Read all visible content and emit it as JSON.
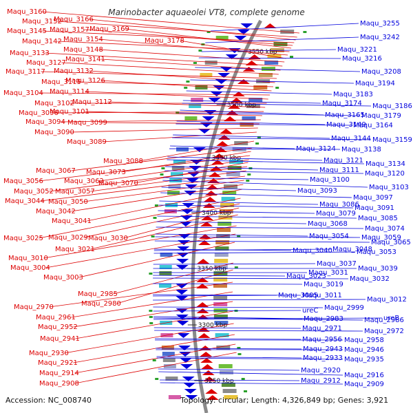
{
  "title": "Marinobacter aquaeolei VT8, complete genome",
  "footer": {
    "accession": "Accession: NC_008740",
    "stats": "Topology: circular; Length: 4,326,849 bp; Genes: 3,921"
  },
  "colors": {
    "forward": "#dd0000",
    "reverse": "#0000dd",
    "backbone": "#999999"
  },
  "ticks": [
    "3550 kbp",
    "3500 kbp",
    "3450 kbp",
    "3400 kbp",
    "3350 kbp",
    "3300 kbp",
    "3250 kbp"
  ],
  "left_labels": [
    "Maqu_3160",
    "Maqu_3152",
    "Maqu_3166",
    "Maqu_3145",
    "Maqu_3157",
    "Maqu_3169",
    "Maqu_3142",
    "Maqu_3154",
    "Maqu_3178",
    "Maqu_3148",
    "Maqu_3133",
    "Maqu_3141",
    "Maqu_3127",
    "Maqu_3117",
    "Maqu_3132",
    "Maqu_3115",
    "Maqu_3126",
    "Maqu_3104",
    "Maqu_3114",
    "Maqu_3102",
    "Maqu_3112",
    "Maqu_3096",
    "Maqu_3101",
    "Maqu_3094",
    "Maqu_3099",
    "Maqu_3090",
    "Maqu_3089",
    "Maqu_3088",
    "Maqu_3067",
    "Maqu_3073",
    "Maqu_3056",
    "Maqu_3062",
    "Maqu_3070",
    "Maqu_3052",
    "Maqu_3057",
    "Maqu_3044",
    "Maqu_3050",
    "Maqu_3042",
    "Maqu_3041",
    "Maqu_3025",
    "Maqu_3029",
    "Maqu_3030",
    "Maqu_3021",
    "Maqu_3010",
    "Maqu_3004",
    "Maqu_3003",
    "Maqu_2985",
    "Maqu_2980",
    "Maqu_2970",
    "Maqu_2961",
    "Maqu_2952",
    "Maqu_2941",
    "Maqu_2930",
    "Maqu_2921",
    "Maqu_2914",
    "Maqu_2908"
  ],
  "right_labels": [
    "Maqu_3255",
    "Maqu_3242",
    "Maqu_3221",
    "Maqu_3216",
    "Maqu_3208",
    "Maqu_3194",
    "Maqu_3183",
    "Maqu_3174",
    "Maqu_3186",
    "Maqu_3165",
    "Maqu_3179",
    "Maqu_3149",
    "Maqu_3164",
    "Maqu_3144",
    "Maqu_3159",
    "Maqu_3124",
    "Maqu_3138",
    "Maqu_3121",
    "Maqu_3134",
    "Maqu_3111",
    "Maqu_3120",
    "Maqu_3100",
    "Maqu_3103",
    "Maqu_3093",
    "Maqu_3097",
    "Maqu_3086",
    "Maqu_3091",
    "Maqu_3079",
    "Maqu_3085",
    "Maqu_3068",
    "Maqu_3074",
    "Maqu_3054",
    "Maqu_3059",
    "Maqu_3065",
    "Maqu_3040",
    "Maqu_3048",
    "Maqu_3053",
    "Maqu_3037",
    "Maqu_3039",
    "Maqu_3023",
    "Maqu_3031",
    "Maqu_3032",
    "Maqu_3019",
    "Maqu_3011",
    "Maqu_3005",
    "Maqu_3012",
    "Maqu_2999",
    "ureC",
    "Maqu_2983",
    "Maqu_2986",
    "ureB",
    "Maqu_2971",
    "Maqu_2972",
    "Maqu_2956",
    "Maqu_2958",
    "Maqu_2943",
    "Maqu_2946",
    "Maqu_2933",
    "Maqu_2935",
    "Maqu_2920",
    "Maqu_2916",
    "Maqu_2912",
    "Maqu_2909"
  ]
}
